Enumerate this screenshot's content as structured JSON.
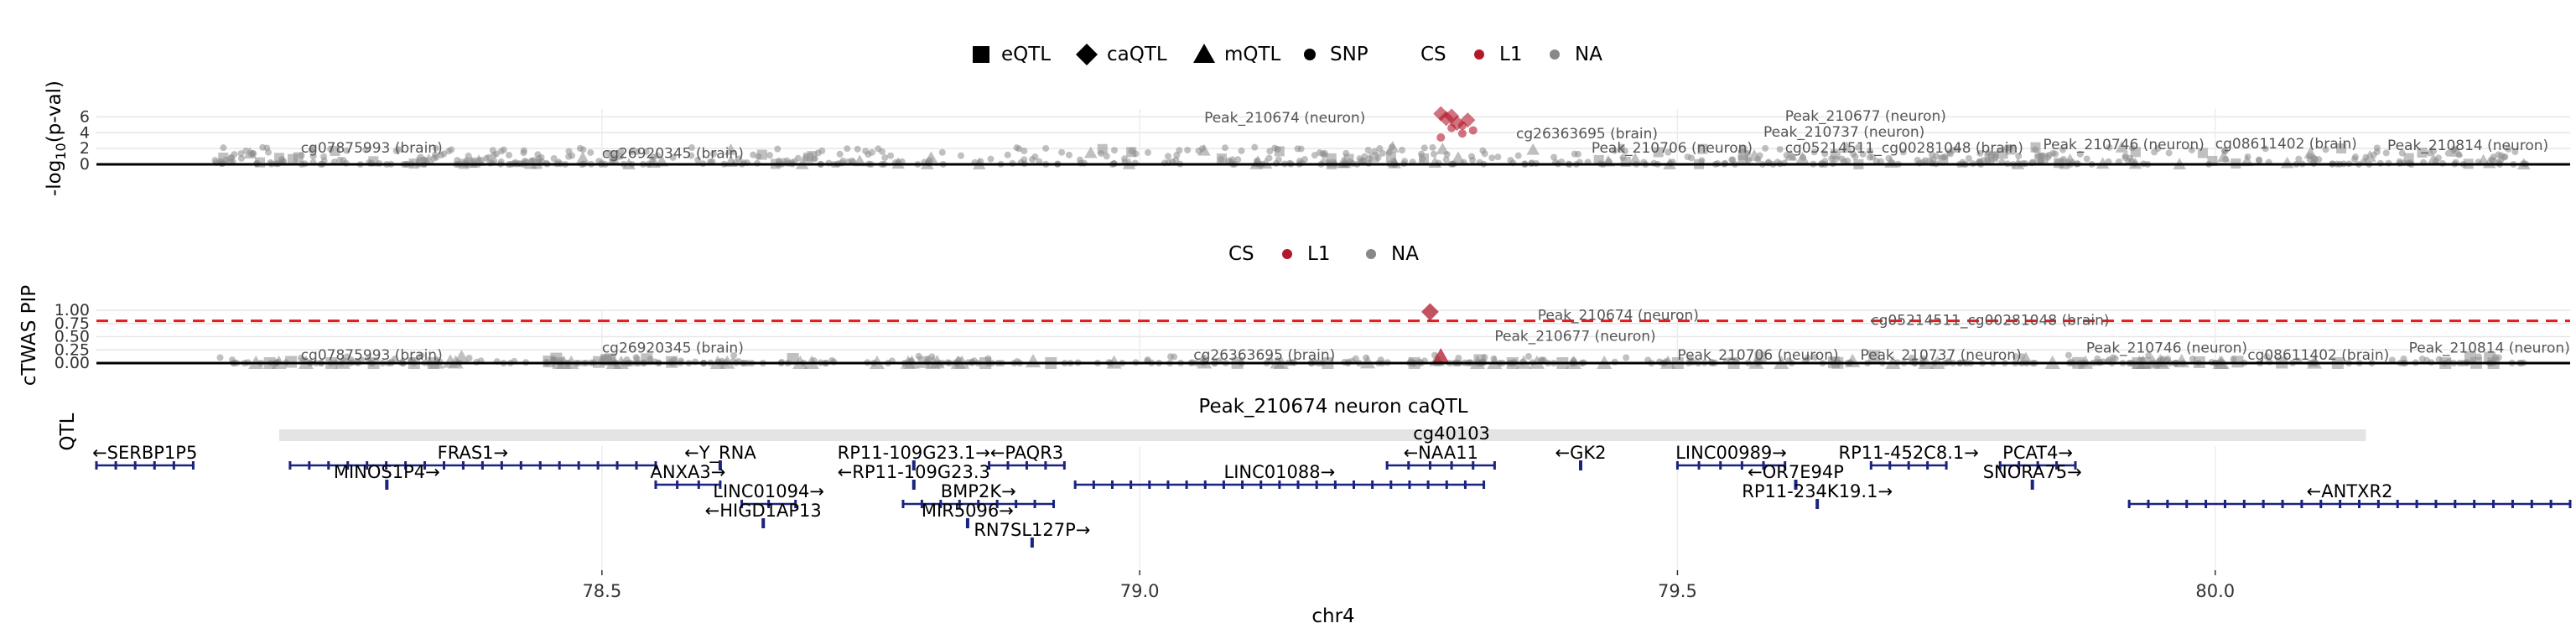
{
  "chart_data": [
    {
      "type": "scatter",
      "panel": "p-value",
      "ylabel_prefix": "-log",
      "ylabel_sub": "10",
      "ylabel_suffix": "(p-val)",
      "ylim": [
        0,
        7
      ],
      "yticks": [
        0,
        2,
        4,
        6
      ],
      "grid": true,
      "legend": {
        "position": "top",
        "shapes": [
          {
            "shape": "square",
            "label": "eQTL"
          },
          {
            "shape": "diamond",
            "label": "caQTL"
          },
          {
            "shape": "triangle",
            "label": "mQTL"
          },
          {
            "shape": "circle",
            "label": "SNP"
          }
        ],
        "cs_title": "CS",
        "cs": [
          {
            "label": "L1",
            "color": "#b2182b"
          },
          {
            "label": "NA",
            "color": "#888888"
          }
        ]
      },
      "highlight": [
        {
          "x": 79.28,
          "y": 6.4,
          "shape": "diamond"
        },
        {
          "x": 79.285,
          "y": 5.8,
          "shape": "diamond"
        },
        {
          "x": 79.29,
          "y": 6.1,
          "shape": "diamond"
        },
        {
          "x": 79.295,
          "y": 5.2,
          "shape": "diamond"
        },
        {
          "x": 79.3,
          "y": 4.9,
          "shape": "circle"
        },
        {
          "x": 79.305,
          "y": 5.6,
          "shape": "diamond"
        },
        {
          "x": 79.31,
          "y": 4.3,
          "shape": "circle"
        },
        {
          "x": 79.29,
          "y": 4.6,
          "shape": "circle"
        },
        {
          "x": 79.3,
          "y": 3.9,
          "shape": "circle"
        },
        {
          "x": 79.28,
          "y": 3.4,
          "shape": "circle"
        }
      ],
      "labels": [
        {
          "text": "cg07875993 (brain)",
          "x": 78.22,
          "y": 1.5
        },
        {
          "text": "cg26920345 (brain)",
          "x": 78.5,
          "y": 0.8
        },
        {
          "text": "Peak_210674 (neuron)",
          "x": 79.06,
          "y": 5.3
        },
        {
          "text": "Peak_210677 (neuron)",
          "x": 79.6,
          "y": 5.5
        },
        {
          "text": "cg26363695 (brain)",
          "x": 79.35,
          "y": 3.3
        },
        {
          "text": "Peak_210737 (neuron)",
          "x": 79.58,
          "y": 3.5
        },
        {
          "text": "Peak_210706 (neuron)",
          "x": 79.42,
          "y": 1.5
        },
        {
          "text": "cg05214511_cg00281048 (brain)",
          "x": 79.6,
          "y": 1.5
        },
        {
          "text": "Peak_210746 (neuron)",
          "x": 79.84,
          "y": 1.9
        },
        {
          "text": "cg08611402 (brain)",
          "x": 80.0,
          "y": 2.0
        },
        {
          "text": "Peak_210814 (neuron)",
          "x": 80.16,
          "y": 1.8
        }
      ]
    },
    {
      "type": "scatter",
      "panel": "pip",
      "ylabel": "cTWAS PIP",
      "ylim": [
        0,
        1
      ],
      "yticks": [
        0,
        0.25,
        0.5,
        0.75,
        1
      ],
      "ytick_labels": [
        "0.00",
        "0.25",
        "0.50",
        "0.75",
        "1.00"
      ],
      "threshold": 0.8,
      "threshold_color": "#e41a1c",
      "legend": {
        "position": "top",
        "cs_title": "CS",
        "cs": [
          {
            "label": "L1",
            "color": "#b2182b"
          },
          {
            "label": "NA",
            "color": "#888888"
          }
        ]
      },
      "highlight": [
        {
          "x": 79.27,
          "y": 0.97,
          "shape": "diamond"
        },
        {
          "x": 79.28,
          "y": 0.12,
          "shape": "triangle"
        }
      ],
      "labels": [
        {
          "text": "cg07875993 (brain)",
          "x": 78.22,
          "y": 0.06
        },
        {
          "text": "cg26920345 (brain)",
          "x": 78.5,
          "y": 0.2
        },
        {
          "text": "Peak_210674 (neuron)",
          "x": 79.37,
          "y": 0.82
        },
        {
          "text": "cg05214511_cg00281048 (brain)",
          "x": 79.68,
          "y": 0.72
        },
        {
          "text": "Peak_210677 (neuron)",
          "x": 79.33,
          "y": 0.42
        },
        {
          "text": "cg26363695 (brain)",
          "x": 79.05,
          "y": 0.06
        },
        {
          "text": "Peak_210706 (neuron)",
          "x": 79.5,
          "y": 0.06
        },
        {
          "text": "Peak_210737 (neuron)",
          "x": 79.67,
          "y": 0.06
        },
        {
          "text": "Peak_210746 (neuron)",
          "x": 79.88,
          "y": 0.2
        },
        {
          "text": "cg08611402 (brain)",
          "x": 80.03,
          "y": 0.06
        },
        {
          "text": "Peak_210814 (neuron)",
          "x": 80.18,
          "y": 0.2
        }
      ]
    },
    {
      "type": "track",
      "panel": "qtl",
      "ylabel": "QTL",
      "title": "Peak_210674 neuron caQTL",
      "span": [
        78.2,
        80.14
      ]
    },
    {
      "type": "genes",
      "panel": "genes",
      "xlabel": "chr4",
      "xlim": [
        78.03,
        80.33
      ],
      "xticks": [
        78.5,
        79.0,
        79.5,
        80.0
      ],
      "xtick_labels": [
        "78.5",
        "79.0",
        "79.5",
        "80.0"
      ],
      "gene_color": "#1a237e",
      "genes": [
        {
          "label": "FRAS1→",
          "start": 78.21,
          "end": 78.55,
          "row": 0
        },
        {
          "label": "←SERBP1P5",
          "start": 78.03,
          "end": 78.12,
          "row": 0
        },
        {
          "label": "MINOS1P4→",
          "start": 78.3,
          "end": 78.3,
          "row": 1
        },
        {
          "label": "←Y_RNA",
          "start": 78.61,
          "end": 78.61,
          "row": 0
        },
        {
          "label": "ANXA3→",
          "start": 78.55,
          "end": 78.61,
          "row": 1
        },
        {
          "label": "LINC01094→",
          "start": 78.63,
          "end": 78.68,
          "row": 2
        },
        {
          "label": "←HIGD1AP13",
          "start": 78.65,
          "end": 78.65,
          "row": 3
        },
        {
          "label": "RP11-109G23.1→",
          "start": 78.79,
          "end": 78.79,
          "row": 0
        },
        {
          "label": "←RP11-109G23.3",
          "start": 78.79,
          "end": 78.79,
          "row": 1
        },
        {
          "label": "BMP2K→",
          "start": 78.78,
          "end": 78.92,
          "row": 2
        },
        {
          "label": "MIR5096→",
          "start": 78.84,
          "end": 78.84,
          "row": 3
        },
        {
          "label": "RN7SL127P→",
          "start": 78.9,
          "end": 78.9,
          "row": 4
        },
        {
          "label": "←PAQR3",
          "start": 78.86,
          "end": 78.93,
          "row": 0
        },
        {
          "label": "LINC01088→",
          "start": 78.94,
          "end": 79.32,
          "row": 1
        },
        {
          "label": "←NAA11",
          "start": 79.23,
          "end": 79.33,
          "row": 0
        },
        {
          "label": "cg40103",
          "start": 79.29,
          "end": 79.29,
          "row": -1
        },
        {
          "label": "←GK2",
          "start": 79.41,
          "end": 79.41,
          "row": 0
        },
        {
          "label": "LINC00989→",
          "start": 79.5,
          "end": 79.6,
          "row": 0
        },
        {
          "label": "←OR7E94P",
          "start": 79.61,
          "end": 79.61,
          "row": 1
        },
        {
          "label": "RP11-234K19.1→",
          "start": 79.63,
          "end": 79.63,
          "row": 2
        },
        {
          "label": "RP11-452C8.1→",
          "start": 79.68,
          "end": 79.75,
          "row": 0
        },
        {
          "label": "PCAT4→",
          "start": 79.8,
          "end": 79.87,
          "row": 0
        },
        {
          "label": "SNORA75→",
          "start": 79.83,
          "end": 79.83,
          "row": 1
        },
        {
          "label": "←ANTXR2",
          "start": 79.92,
          "end": 80.33,
          "row": 2
        }
      ]
    }
  ]
}
